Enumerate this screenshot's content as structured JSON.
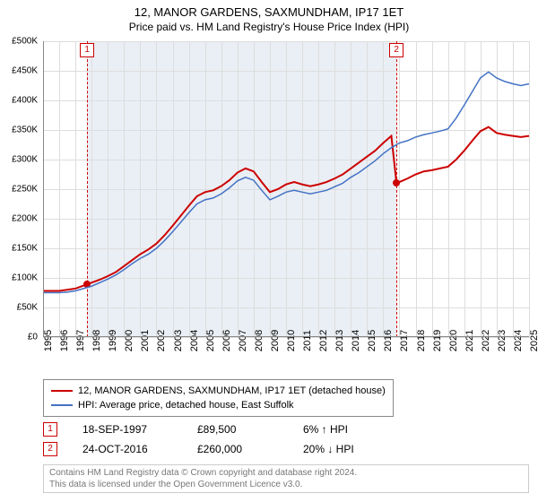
{
  "title": "12, MANOR GARDENS, SAXMUNDHAM, IP17 1ET",
  "subtitle": "Price paid vs. HM Land Registry's House Price Index (HPI)",
  "chart": {
    "type": "line",
    "background_color": "#ffffff",
    "grid_color": "#dddddd",
    "axis_color": "#888888",
    "title_fontsize": 13,
    "label_fontsize": 11,
    "tick_fontsize": 10,
    "x": {
      "min": 1995,
      "max": 2025,
      "ticks": [
        1995,
        1996,
        1997,
        1998,
        1999,
        2000,
        2001,
        2002,
        2003,
        2004,
        2005,
        2006,
        2007,
        2008,
        2009,
        2010,
        2011,
        2012,
        2013,
        2014,
        2015,
        2016,
        2017,
        2018,
        2019,
        2020,
        2021,
        2022,
        2023,
        2024,
        2025
      ]
    },
    "y": {
      "min": 0,
      "max": 500000,
      "ticks": [
        0,
        50000,
        100000,
        150000,
        200000,
        250000,
        300000,
        350000,
        400000,
        450000,
        500000
      ],
      "tick_labels": [
        "£0",
        "£50K",
        "£100K",
        "£150K",
        "£200K",
        "£250K",
        "£300K",
        "£350K",
        "£400K",
        "£450K",
        "£500K"
      ]
    },
    "shade_region": {
      "x_start": 1997.72,
      "x_end": 2016.82,
      "color": "#eaeff5"
    },
    "series": [
      {
        "name": "12, MANOR GARDENS, SAXMUNDHAM, IP17 1ET (detached house)",
        "color": "#cc0000",
        "line_width": 2,
        "points": [
          [
            1995.0,
            78000
          ],
          [
            1995.5,
            78000
          ],
          [
            1996.0,
            78000
          ],
          [
            1996.5,
            80000
          ],
          [
            1997.0,
            82000
          ],
          [
            1997.5,
            87000
          ],
          [
            1997.72,
            89500
          ],
          [
            1998.0,
            92000
          ],
          [
            1998.5,
            97000
          ],
          [
            1999.0,
            103000
          ],
          [
            1999.5,
            110000
          ],
          [
            2000.0,
            120000
          ],
          [
            2000.5,
            130000
          ],
          [
            2001.0,
            140000
          ],
          [
            2001.5,
            148000
          ],
          [
            2002.0,
            158000
          ],
          [
            2002.5,
            172000
          ],
          [
            2003.0,
            188000
          ],
          [
            2003.5,
            205000
          ],
          [
            2004.0,
            222000
          ],
          [
            2004.5,
            238000
          ],
          [
            2005.0,
            245000
          ],
          [
            2005.5,
            248000
          ],
          [
            2006.0,
            255000
          ],
          [
            2006.5,
            265000
          ],
          [
            2007.0,
            278000
          ],
          [
            2007.5,
            285000
          ],
          [
            2008.0,
            280000
          ],
          [
            2008.5,
            262000
          ],
          [
            2009.0,
            245000
          ],
          [
            2009.5,
            250000
          ],
          [
            2010.0,
            258000
          ],
          [
            2010.5,
            262000
          ],
          [
            2011.0,
            258000
          ],
          [
            2011.5,
            255000
          ],
          [
            2012.0,
            258000
          ],
          [
            2012.5,
            262000
          ],
          [
            2013.0,
            268000
          ],
          [
            2013.5,
            275000
          ],
          [
            2014.0,
            285000
          ],
          [
            2014.5,
            295000
          ],
          [
            2015.0,
            305000
          ],
          [
            2015.5,
            315000
          ],
          [
            2016.0,
            328000
          ],
          [
            2016.5,
            340000
          ],
          [
            2016.82,
            260000
          ],
          [
            2017.0,
            262000
          ],
          [
            2017.5,
            268000
          ],
          [
            2018.0,
            275000
          ],
          [
            2018.5,
            280000
          ],
          [
            2019.0,
            282000
          ],
          [
            2019.5,
            285000
          ],
          [
            2020.0,
            288000
          ],
          [
            2020.5,
            300000
          ],
          [
            2021.0,
            315000
          ],
          [
            2021.5,
            332000
          ],
          [
            2022.0,
            348000
          ],
          [
            2022.5,
            355000
          ],
          [
            2023.0,
            345000
          ],
          [
            2023.5,
            342000
          ],
          [
            2024.0,
            340000
          ],
          [
            2024.5,
            338000
          ],
          [
            2025.0,
            340000
          ]
        ]
      },
      {
        "name": "HPI: Average price, detached house, East Suffolk",
        "color": "#4472c4",
        "line_width": 1.5,
        "points": [
          [
            1995.0,
            75000
          ],
          [
            1995.5,
            75000
          ],
          [
            1996.0,
            75000
          ],
          [
            1996.5,
            76000
          ],
          [
            1997.0,
            78000
          ],
          [
            1997.5,
            82000
          ],
          [
            1998.0,
            86000
          ],
          [
            1998.5,
            92000
          ],
          [
            1999.0,
            98000
          ],
          [
            1999.5,
            105000
          ],
          [
            2000.0,
            114000
          ],
          [
            2000.5,
            124000
          ],
          [
            2001.0,
            133000
          ],
          [
            2001.5,
            140000
          ],
          [
            2002.0,
            150000
          ],
          [
            2002.5,
            163000
          ],
          [
            2003.0,
            178000
          ],
          [
            2003.5,
            194000
          ],
          [
            2004.0,
            210000
          ],
          [
            2004.5,
            225000
          ],
          [
            2005.0,
            232000
          ],
          [
            2005.5,
            235000
          ],
          [
            2006.0,
            242000
          ],
          [
            2006.5,
            252000
          ],
          [
            2007.0,
            264000
          ],
          [
            2007.5,
            270000
          ],
          [
            2008.0,
            265000
          ],
          [
            2008.5,
            248000
          ],
          [
            2009.0,
            232000
          ],
          [
            2009.5,
            238000
          ],
          [
            2010.0,
            245000
          ],
          [
            2010.5,
            248000
          ],
          [
            2011.0,
            245000
          ],
          [
            2011.5,
            242000
          ],
          [
            2012.0,
            245000
          ],
          [
            2012.5,
            248000
          ],
          [
            2013.0,
            254000
          ],
          [
            2013.5,
            260000
          ],
          [
            2014.0,
            270000
          ],
          [
            2014.5,
            278000
          ],
          [
            2015.0,
            288000
          ],
          [
            2015.5,
            298000
          ],
          [
            2016.0,
            310000
          ],
          [
            2016.5,
            320000
          ],
          [
            2017.0,
            328000
          ],
          [
            2017.5,
            332000
          ],
          [
            2018.0,
            338000
          ],
          [
            2018.5,
            342000
          ],
          [
            2019.0,
            345000
          ],
          [
            2019.5,
            348000
          ],
          [
            2020.0,
            352000
          ],
          [
            2020.5,
            370000
          ],
          [
            2021.0,
            392000
          ],
          [
            2021.5,
            415000
          ],
          [
            2022.0,
            438000
          ],
          [
            2022.5,
            448000
          ],
          [
            2023.0,
            438000
          ],
          [
            2023.5,
            432000
          ],
          [
            2024.0,
            428000
          ],
          [
            2024.5,
            425000
          ],
          [
            2025.0,
            428000
          ]
        ]
      }
    ],
    "markers": [
      {
        "id": "1",
        "x": 1997.72,
        "y": 89500,
        "dot_color": "#cc0000",
        "line_color": "#cc0000"
      },
      {
        "id": "2",
        "x": 2016.82,
        "y": 260000,
        "dot_color": "#cc0000",
        "line_color": "#cc0000"
      }
    ]
  },
  "legend": {
    "items": [
      {
        "label": "12, MANOR GARDENS, SAXMUNDHAM, IP17 1ET (detached house)",
        "color": "#cc0000"
      },
      {
        "label": "HPI: Average price, detached house, East Suffolk",
        "color": "#4472c4"
      }
    ]
  },
  "transactions": [
    {
      "id": "1",
      "date": "18-SEP-1997",
      "price": "£89,500",
      "delta": "6% ↑ HPI"
    },
    {
      "id": "2",
      "date": "24-OCT-2016",
      "price": "£260,000",
      "delta": "20% ↓ HPI"
    }
  ],
  "footer": {
    "line1": "Contains HM Land Registry data © Crown copyright and database right 2024.",
    "line2": "This data is licensed under the Open Government Licence v3.0."
  }
}
